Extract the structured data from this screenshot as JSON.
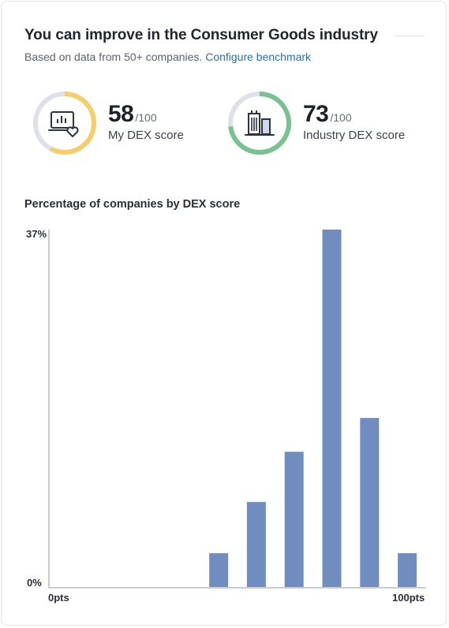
{
  "card": {
    "title": "You can improve in the Consumer Goods industry",
    "subtitle_prefix": "Based on data from 50+ companies.",
    "configure_link": "Configure benchmark"
  },
  "my_score": {
    "value": "58",
    "denominator": "/100",
    "label": "My DEX score",
    "fraction": 0.58,
    "color": "#f7cd6a",
    "icon": "monitor-heart-icon"
  },
  "industry_score": {
    "value": "73",
    "denominator": "/100",
    "label": "Industry DEX score",
    "fraction": 0.73,
    "color": "#76c38f",
    "icon": "buildings-icon"
  },
  "track_color": "#dfe1ea",
  "chart_data": {
    "type": "bar",
    "title": "Percentage of companies by DEX score",
    "y_top_label": "37%",
    "y_bottom_label": "0%",
    "x_start_label": "0pts",
    "x_end_label": "100pts",
    "ylim": [
      0,
      37
    ],
    "bar_color": "#718dbf",
    "axis_color": "#c9ccd6",
    "values": [
      0,
      0,
      0,
      0,
      3.5,
      8.8,
      14,
      37,
      17.5,
      3.5
    ]
  }
}
